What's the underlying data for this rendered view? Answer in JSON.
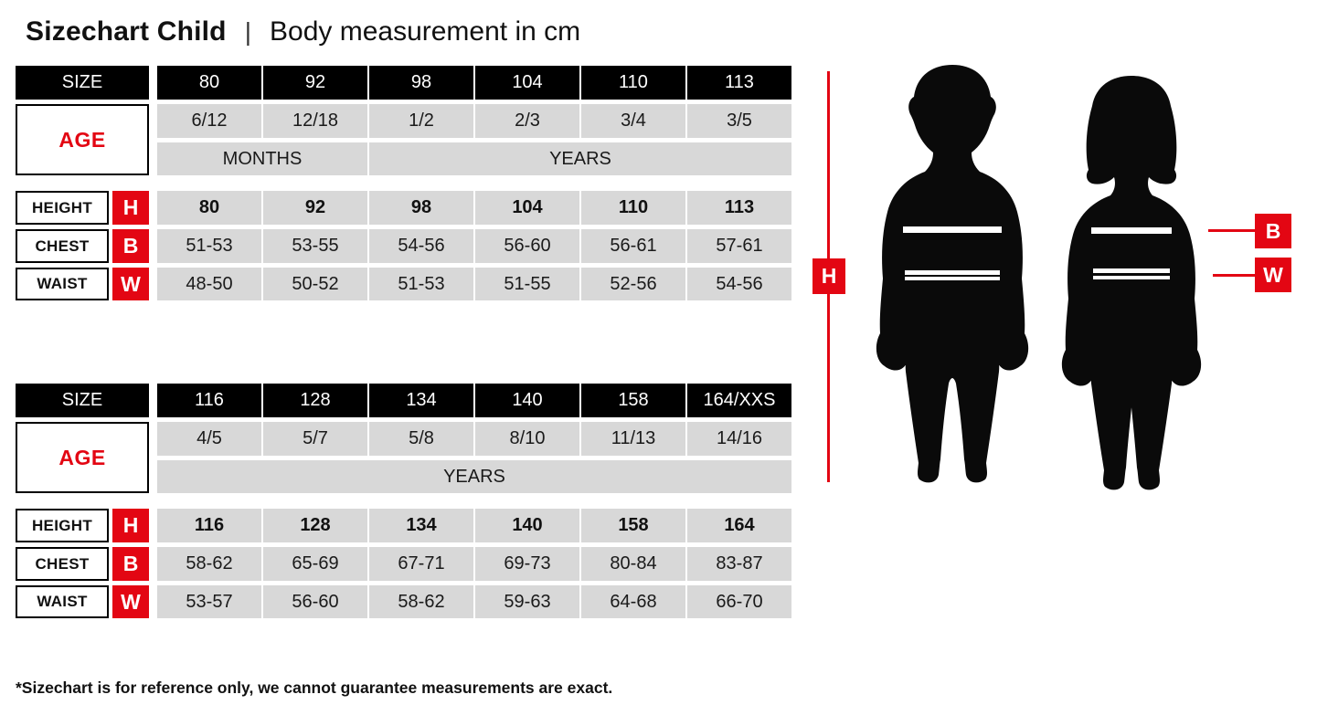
{
  "header": {
    "title": "Sizechart Child",
    "separator": "|",
    "subtitle": "Body measurement in cm"
  },
  "tables": [
    {
      "size_label": "SIZE",
      "age_label": "AGE",
      "sizes": [
        "80",
        "92",
        "98",
        "104",
        "110",
        "113"
      ],
      "ages": [
        "6/12",
        "12/18",
        "1/2",
        "2/3",
        "3/4",
        "3/5"
      ],
      "unit_spans": [
        {
          "label": "MONTHS",
          "cols": 2
        },
        {
          "label": "YEARS",
          "cols": 4
        }
      ],
      "rows": [
        {
          "label": "HEIGHT",
          "letter": "H",
          "bold": true,
          "values": [
            "80",
            "92",
            "98",
            "104",
            "110",
            "113"
          ]
        },
        {
          "label": "CHEST",
          "letter": "B",
          "bold": false,
          "values": [
            "51-53",
            "53-55",
            "54-56",
            "56-60",
            "56-61",
            "57-61"
          ]
        },
        {
          "label": "WAIST",
          "letter": "W",
          "bold": false,
          "values": [
            "48-50",
            "50-52",
            "51-53",
            "51-55",
            "52-56",
            "54-56"
          ]
        }
      ]
    },
    {
      "size_label": "SIZE",
      "age_label": "AGE",
      "sizes": [
        "116",
        "128",
        "134",
        "140",
        "158",
        "164/XXS"
      ],
      "ages": [
        "4/5",
        "5/7",
        "5/8",
        "8/10",
        "11/13",
        "14/16"
      ],
      "unit_spans": [
        {
          "label": "YEARS",
          "cols": 6
        }
      ],
      "rows": [
        {
          "label": "HEIGHT",
          "letter": "H",
          "bold": true,
          "values": [
            "116",
            "128",
            "134",
            "140",
            "158",
            "164"
          ]
        },
        {
          "label": "CHEST",
          "letter": "B",
          "bold": false,
          "values": [
            "58-62",
            "65-69",
            "67-71",
            "69-73",
            "80-84",
            "83-87"
          ]
        },
        {
          "label": "WAIST",
          "letter": "W",
          "bold": false,
          "values": [
            "53-57",
            "56-60",
            "58-62",
            "59-63",
            "64-68",
            "66-70"
          ]
        }
      ]
    }
  ],
  "figure": {
    "height_marker": "H",
    "chest_marker": "B",
    "waist_marker": "W"
  },
  "footnote": "*Sizechart is for reference only, we cannot guarantee measurements are exact.",
  "colors": {
    "red": "#e30613",
    "black": "#000000",
    "cell_gray": "#d8d8d8"
  }
}
